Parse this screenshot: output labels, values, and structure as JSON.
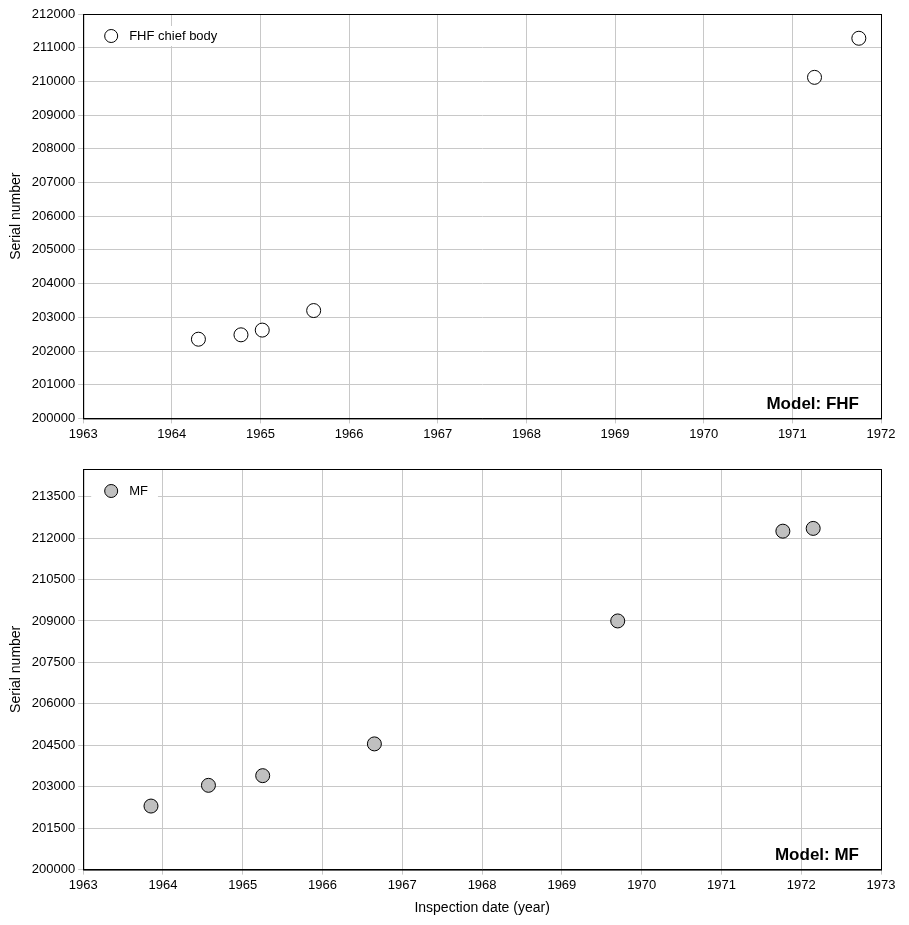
{
  "chart_data": [
    {
      "type": "scatter",
      "y_label": "Serial number",
      "annotations": [
        "Model: FHF"
      ],
      "series": [
        {
          "name": "FHF chief body",
          "color": "#ffffff",
          "marker": "circle",
          "x": [
            1964.3,
            1964.78,
            1965.02,
            1965.6,
            1971.25,
            1971.75
          ],
          "values": [
            202350,
            202480,
            202620,
            203200,
            210120,
            211280
          ]
        }
      ],
      "xlim": [
        1963,
        1972
      ],
      "xticks": [
        1963,
        1964,
        1965,
        1966,
        1967,
        1968,
        1969,
        1970,
        1971,
        1972
      ],
      "ylim": [
        200000,
        212000
      ],
      "yticks": [
        200000,
        201000,
        202000,
        203000,
        204000,
        205000,
        206000,
        207000,
        208000,
        209000,
        210000,
        211000,
        212000
      ],
      "grid": true,
      "legend": "upper left"
    },
    {
      "type": "scatter",
      "x_label": "Inspection date (year)",
      "y_label": "Serial number",
      "annotations": [
        "Model: MF"
      ],
      "series": [
        {
          "name": "MF",
          "color": "#c0c0c0",
          "marker": "circle",
          "x": [
            1963.85,
            1964.57,
            1965.25,
            1966.65,
            1969.7,
            1971.77,
            1972.15
          ],
          "values": [
            202300,
            203050,
            203400,
            204550,
            209000,
            212250,
            212350
          ]
        }
      ],
      "xlim": [
        1963,
        1973
      ],
      "xticks": [
        1963,
        1964,
        1965,
        1966,
        1967,
        1968,
        1969,
        1970,
        1971,
        1972,
        1973
      ],
      "ylim": [
        200000,
        214500
      ],
      "yticks": [
        200000,
        201500,
        203000,
        204500,
        206000,
        207500,
        209000,
        210500,
        212000,
        213500
      ],
      "grid": true,
      "legend": "upper left"
    }
  ]
}
